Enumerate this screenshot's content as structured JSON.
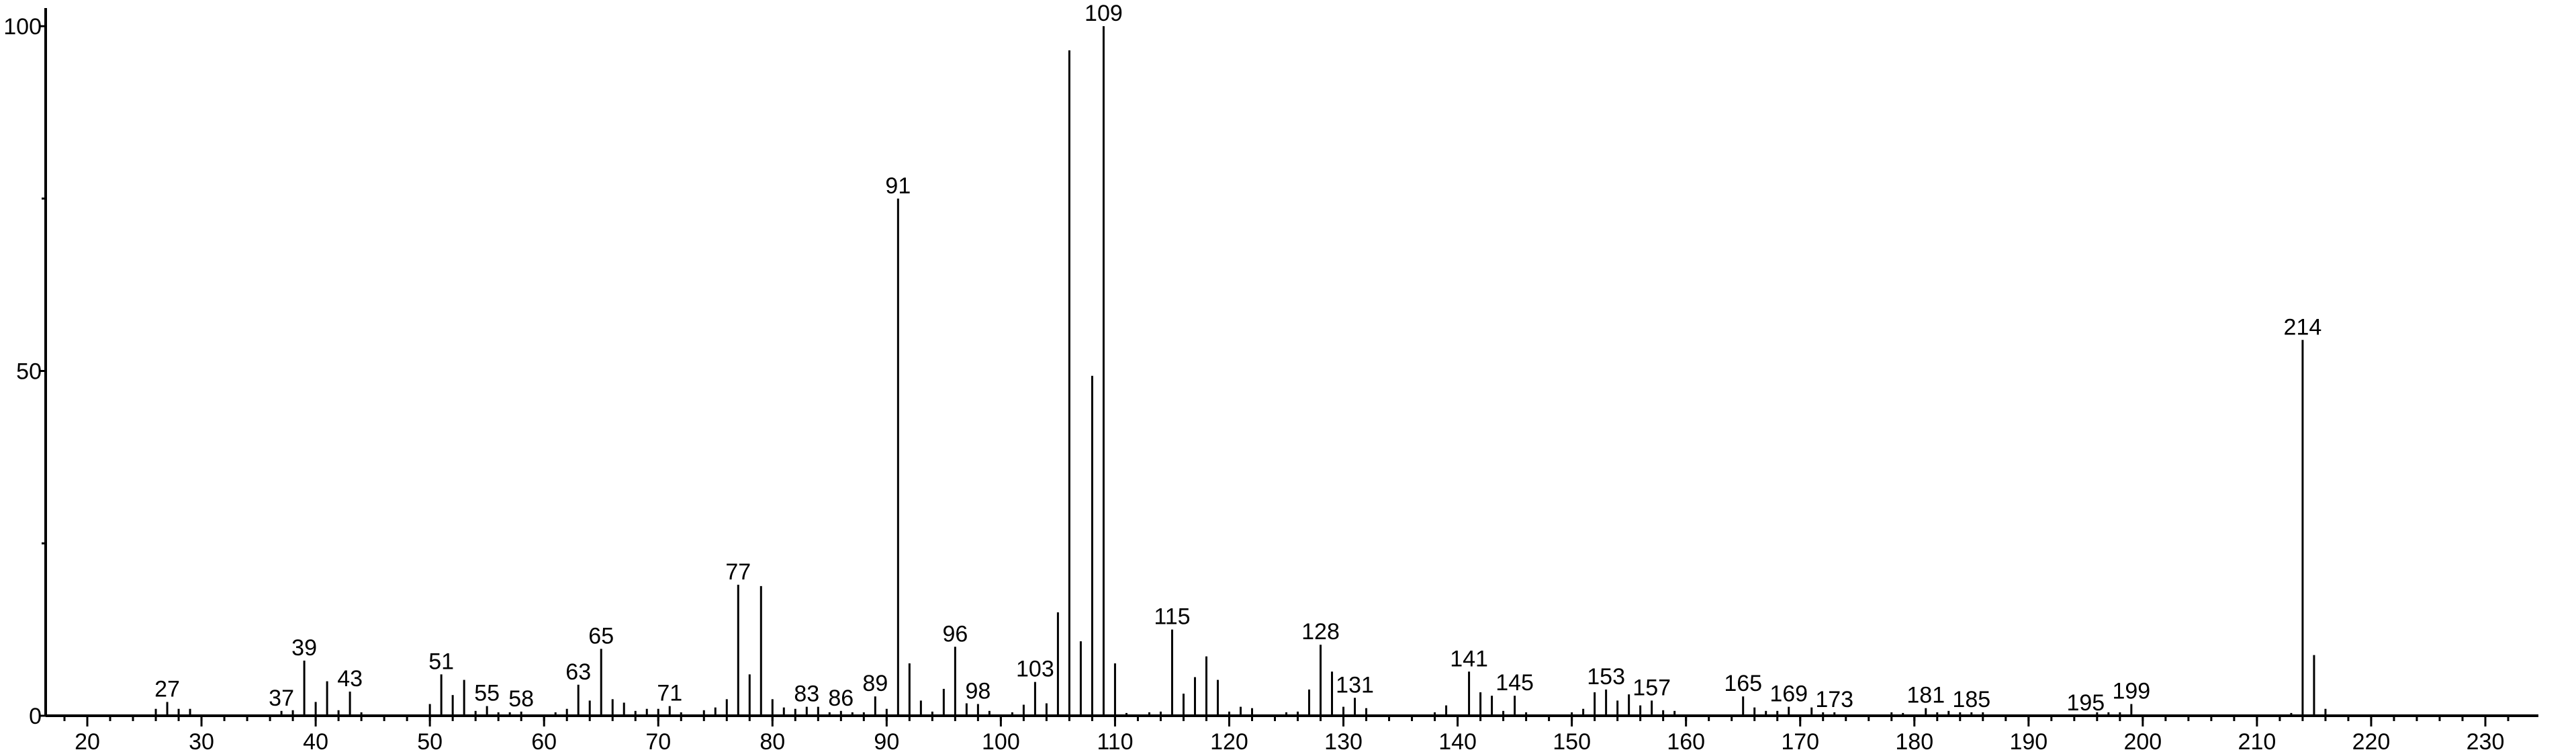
{
  "chart_data": {
    "type": "bar",
    "title": "",
    "xlabel": "",
    "ylabel": "",
    "xlim": [
      17,
      233
    ],
    "ylim": [
      0,
      100
    ],
    "grid": false,
    "x_ticks": [
      20,
      30,
      40,
      50,
      60,
      70,
      80,
      90,
      100,
      110,
      120,
      130,
      140,
      150,
      160,
      170,
      180,
      190,
      200,
      210,
      220,
      230
    ],
    "y_ticks": [
      0,
      50,
      100
    ],
    "y_minor_ticks": [
      25,
      75
    ],
    "color": "#000000",
    "peaks": [
      [
        26,
        1
      ],
      [
        27,
        2
      ],
      [
        28,
        1
      ],
      [
        29,
        1
      ],
      [
        37,
        0.7
      ],
      [
        38,
        0.8
      ],
      [
        39,
        8
      ],
      [
        40,
        2
      ],
      [
        41,
        5
      ],
      [
        42,
        0.8
      ],
      [
        43,
        3.5
      ],
      [
        44,
        0.5
      ],
      [
        50,
        1.7
      ],
      [
        51,
        6
      ],
      [
        52,
        3
      ],
      [
        53,
        5.2
      ],
      [
        54,
        0.7
      ],
      [
        55,
        1.4
      ],
      [
        56,
        0.5
      ],
      [
        57,
        0.5
      ],
      [
        58,
        0.6
      ],
      [
        61,
        0.5
      ],
      [
        62,
        1
      ],
      [
        63,
        4.5
      ],
      [
        64,
        2.2
      ],
      [
        65,
        9.7
      ],
      [
        66,
        2.4
      ],
      [
        67,
        1.9
      ],
      [
        68,
        0.7
      ],
      [
        69,
        1
      ],
      [
        70,
        1
      ],
      [
        71,
        1.4
      ],
      [
        72,
        0.5
      ],
      [
        74,
        0.8
      ],
      [
        75,
        1.2
      ],
      [
        76,
        2.4
      ],
      [
        77,
        19
      ],
      [
        78,
        6
      ],
      [
        79,
        18.8
      ],
      [
        80,
        2.4
      ],
      [
        81,
        1.2
      ],
      [
        82,
        1
      ],
      [
        83,
        1.3
      ],
      [
        84,
        1.3
      ],
      [
        85,
        0.5
      ],
      [
        86,
        0.7
      ],
      [
        87,
        0.5
      ],
      [
        88,
        0.5
      ],
      [
        89,
        2.8
      ],
      [
        90,
        1
      ],
      [
        91,
        75
      ],
      [
        92,
        7.6
      ],
      [
        93,
        2.2
      ],
      [
        94,
        0.6
      ],
      [
        95,
        3.9
      ],
      [
        96,
        10
      ],
      [
        97,
        1.8
      ],
      [
        98,
        1.7
      ],
      [
        99,
        0.7
      ],
      [
        101,
        0.5
      ],
      [
        102,
        1.6
      ],
      [
        103,
        4.9
      ],
      [
        104,
        1.8
      ],
      [
        105,
        15
      ],
      [
        106,
        96.5
      ],
      [
        107,
        10.8
      ],
      [
        108,
        49.3
      ],
      [
        109,
        100
      ],
      [
        110,
        7.6
      ],
      [
        111,
        0.4
      ],
      [
        113,
        0.5
      ],
      [
        114,
        0.6
      ],
      [
        115,
        12.5
      ],
      [
        116,
        3.2
      ],
      [
        117,
        5.6
      ],
      [
        118,
        8.6
      ],
      [
        119,
        5.2
      ],
      [
        120,
        0.6
      ],
      [
        121,
        1.3
      ],
      [
        122,
        1.1
      ],
      [
        125,
        0.5
      ],
      [
        126,
        0.6
      ],
      [
        127,
        3.8
      ],
      [
        128,
        10.3
      ],
      [
        129,
        6.4
      ],
      [
        130,
        1.3
      ],
      [
        131,
        2.6
      ],
      [
        132,
        1.1
      ],
      [
        138,
        0.5
      ],
      [
        139,
        1.5
      ],
      [
        141,
        6.4
      ],
      [
        142,
        3.4
      ],
      [
        143,
        2.9
      ],
      [
        144,
        0.7
      ],
      [
        145,
        2.9
      ],
      [
        146,
        0.5
      ],
      [
        150,
        0.5
      ],
      [
        151,
        1
      ],
      [
        152,
        3.4
      ],
      [
        153,
        3.8
      ],
      [
        154,
        2.2
      ],
      [
        155,
        3.1
      ],
      [
        156,
        1.5
      ],
      [
        157,
        2.2
      ],
      [
        158,
        0.8
      ],
      [
        159,
        0.7
      ],
      [
        165,
        2.8
      ],
      [
        166,
        1.2
      ],
      [
        167,
        0.7
      ],
      [
        168,
        0.7
      ],
      [
        169,
        1.3
      ],
      [
        171,
        1.2
      ],
      [
        172,
        0.5
      ],
      [
        173,
        0.5
      ],
      [
        178,
        0.5
      ],
      [
        179,
        0.4
      ],
      [
        181,
        1.1
      ],
      [
        182,
        0.5
      ],
      [
        183,
        0.7
      ],
      [
        184,
        0.5
      ],
      [
        185,
        0.5
      ],
      [
        186,
        0.5
      ],
      [
        196,
        0.5
      ],
      [
        197,
        0.5
      ],
      [
        198,
        0.5
      ],
      [
        199,
        1.7
      ],
      [
        213,
        0.4
      ],
      [
        214,
        54.5
      ],
      [
        215,
        8.8
      ],
      [
        216,
        1
      ]
    ],
    "labeled_peaks": [
      "27",
      "37",
      "39",
      "43",
      "51",
      "55",
      "58",
      "63",
      "65",
      "71",
      "77",
      "83",
      "86",
      "89",
      "91",
      "96",
      "98",
      "103",
      "109",
      "115",
      "128",
      "131",
      "141",
      "145",
      "153",
      "157",
      "165",
      "169",
      "173",
      "181",
      "185",
      "195",
      "199",
      "214"
    ]
  }
}
